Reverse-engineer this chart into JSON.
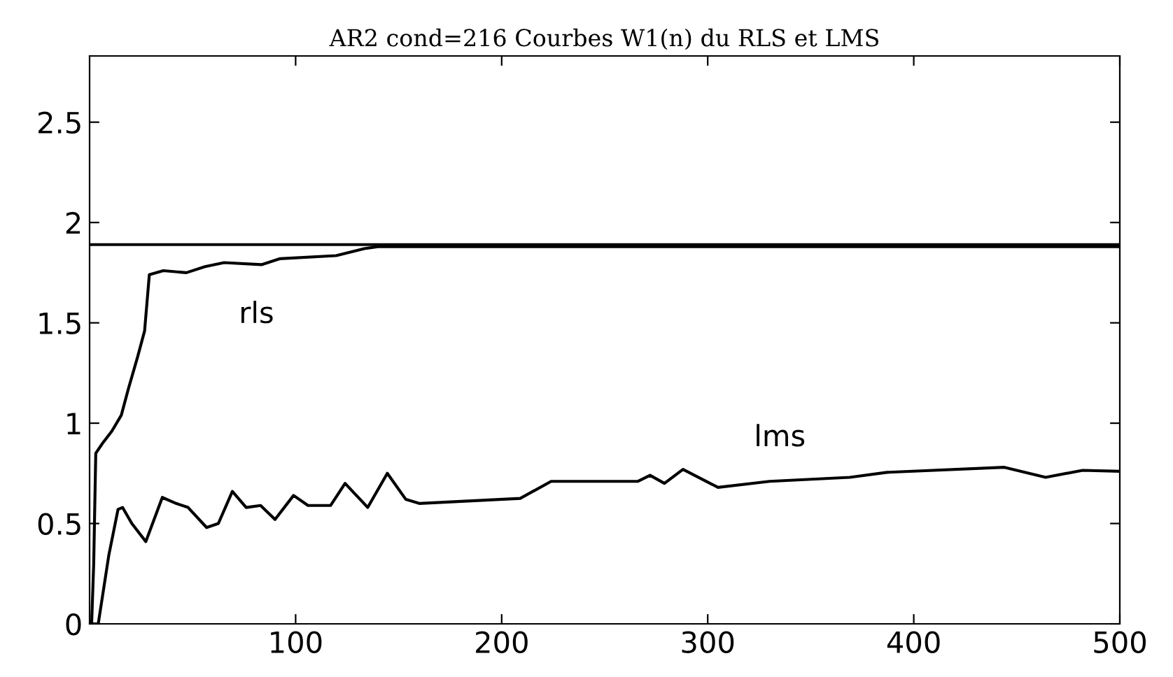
{
  "chart_data": {
    "type": "line",
    "title": "AR2 cond=216 Courbes W1(n) du RLS et LMS",
    "xlim": [
      0,
      500
    ],
    "ylim": [
      0,
      2.83
    ],
    "xticks": [
      100,
      200,
      300,
      400,
      500
    ],
    "yticks": [
      0,
      0.5,
      1,
      1.5,
      2,
      2.5
    ],
    "grid": false,
    "legend": false,
    "marker": "none",
    "line_style": "solid",
    "series": [
      {
        "name": "rls",
        "color": "#000000",
        "x": [
          1,
          2,
          3,
          6.3,
          10.8,
          15.4,
          18.8,
          23.3,
          26.7,
          29,
          35.8,
          47,
          56,
          65.3,
          83.4,
          92.5,
          119.7,
          133.3,
          140,
          200,
          300,
          400,
          500
        ],
        "values": [
          0,
          0.3,
          0.85,
          0.9,
          0.96,
          1.04,
          1.17,
          1.33,
          1.46,
          1.74,
          1.76,
          1.75,
          1.78,
          1.8,
          1.79,
          1.82,
          1.835,
          1.87,
          1.88,
          1.88,
          1.88,
          1.88,
          1.88
        ]
      },
      {
        "name": "lms",
        "color": "#000000",
        "x": [
          1,
          4.2,
          9.3,
          13.8,
          16,
          20.5,
          27.3,
          35.3,
          42,
          47.8,
          56.8,
          62.5,
          69.3,
          76,
          83,
          90,
          99,
          106,
          117,
          124,
          135,
          144.5,
          153.5,
          160,
          209,
          224,
          266,
          272,
          279,
          288,
          305,
          330,
          369,
          387,
          444,
          464,
          482,
          500
        ],
        "values": [
          0,
          0,
          0.34,
          0.57,
          0.58,
          0.5,
          0.41,
          0.63,
          0.6,
          0.58,
          0.48,
          0.5,
          0.66,
          0.58,
          0.59,
          0.52,
          0.64,
          0.59,
          0.59,
          0.7,
          0.58,
          0.75,
          0.62,
          0.6,
          0.625,
          0.71,
          0.71,
          0.74,
          0.7,
          0.77,
          0.68,
          0.71,
          0.73,
          0.755,
          0.78,
          0.73,
          0.765,
          0.76
        ]
      }
    ],
    "ref_lines": [
      {
        "axis": "y",
        "value": 1.89,
        "color": "#000000",
        "line_style": "solid"
      }
    ]
  }
}
